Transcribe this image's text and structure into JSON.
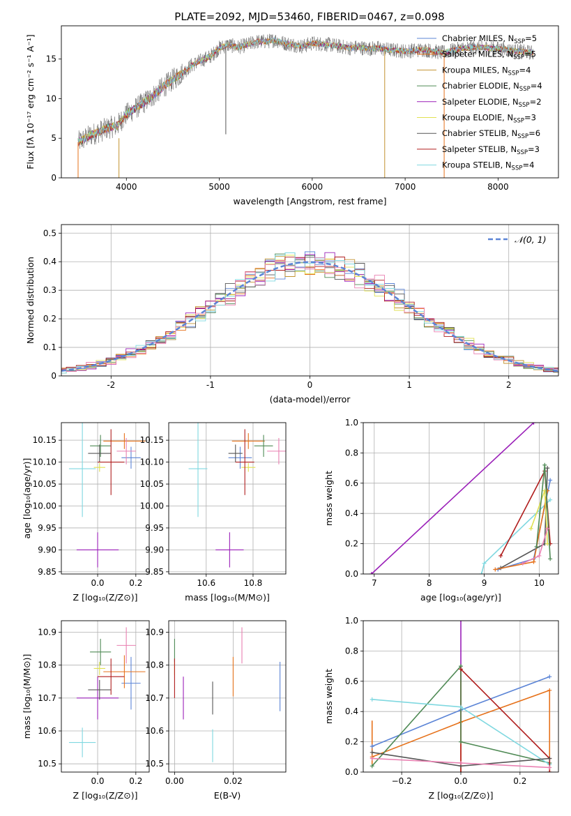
{
  "figure": {
    "title": "PLATE=2092, MJD=53460, FIBERID=0467, z=0.098"
  },
  "colors": {
    "Chabrier MILES": "#5b84d6",
    "Salpeter MILES": "#e6711a",
    "Kroupa MILES": "#c29230",
    "Chabrier ELODIE": "#4f8a55",
    "Salpeter ELODIE": "#9a1fb8",
    "Kroupa ELODIE": "#e0e050",
    "Chabrier STELIB": "#555555",
    "Salpeter STELIB": "#b01d1d",
    "Kroupa STELIB": "#7fd8e0",
    "extra": "#e97fb1",
    "gaussian": "#5b84d6"
  },
  "chart_data": [
    {
      "id": "spectrum",
      "type": "line",
      "title": "PLATE=2092, MJD=53460, FIBERID=0467, z=0.098",
      "xlabel": "wavelength [Angstrom, rest frame]",
      "ylabel": "Flux [fλ 10⁻¹⁷ erg cm⁻² s⁻¹ A⁻¹]",
      "xlim": [
        3300,
        8650
      ],
      "ylim": [
        0,
        19.2
      ],
      "xticks": [
        4000,
        5000,
        6000,
        7000,
        8000
      ],
      "yticks": [
        0,
        5,
        10,
        15
      ],
      "grid": false,
      "legend_position": "top-right",
      "legend": [
        {
          "label": "Chabrier MILES, N",
          "sub": "SSP",
          "suffix": "=5",
          "color_key": "Chabrier MILES"
        },
        {
          "label": "Salpeter MILES, N",
          "sub": "SSP",
          "suffix": "=5",
          "color_key": "Salpeter MILES"
        },
        {
          "label": "Kroupa MILES, N",
          "sub": "SSP",
          "suffix": "=4",
          "color_key": "Kroupa MILES"
        },
        {
          "label": "Chabrier ELODIE, N",
          "sub": "SSP",
          "suffix": "=4",
          "color_key": "Chabrier ELODIE"
        },
        {
          "label": "Salpeter ELODIE, N",
          "sub": "SSP",
          "suffix": "=2",
          "color_key": "Salpeter ELODIE"
        },
        {
          "label": "Kroupa ELODIE, N",
          "sub": "SSP",
          "suffix": "=3",
          "color_key": "Kroupa ELODIE"
        },
        {
          "label": "Chabrier STELIB, N",
          "sub": "SSP",
          "suffix": "=6",
          "color_key": "Chabrier STELIB"
        },
        {
          "label": "Salpeter STELIB, N",
          "sub": "SSP",
          "suffix": "=3",
          "color_key": "Salpeter STELIB"
        },
        {
          "label": "Kroupa STELIB, N",
          "sub": "SSP",
          "suffix": "=4",
          "color_key": "Kroupa STELIB"
        }
      ],
      "continuum_x": [
        3480,
        3600,
        3700,
        3800,
        3900,
        4000,
        4100,
        4200,
        4300,
        4400,
        4500,
        4600,
        4700,
        4800,
        4900,
        5000,
        5100,
        5200,
        5300,
        5400,
        5500,
        5600,
        5700,
        5800,
        5900,
        6000,
        6100,
        6200,
        6300,
        6400,
        6500,
        6600,
        6700,
        6800,
        6900,
        7000,
        7200,
        7400,
        7600,
        7800,
        8000,
        8200,
        8380
      ],
      "continuum_y": [
        4.5,
        5.3,
        5.8,
        6.3,
        6.6,
        8.0,
        8.8,
        9.6,
        10.5,
        11.5,
        12.4,
        13.2,
        14.2,
        14.8,
        15.3,
        16.4,
        16.8,
        16.5,
        16.8,
        17.2,
        17.2,
        17.4,
        17.0,
        16.8,
        16.6,
        17.0,
        16.9,
        16.8,
        16.6,
        16.4,
        16.5,
        16.3,
        16.4,
        16.2,
        16.1,
        16.0,
        16.2,
        15.8,
        16.3,
        16.5,
        16.3,
        16.0,
        15.8
      ],
      "spikes": [
        {
          "x": 3480,
          "y0": 0,
          "y1": 4.5,
          "color_key": "Salpeter MILES"
        },
        {
          "x": 3920,
          "y0": 0,
          "y1": 5.0,
          "color_key": "Kroupa MILES"
        },
        {
          "x": 5070,
          "y0": 5.5,
          "y1": 16.5,
          "color_key": "Chabrier STELIB"
        },
        {
          "x": 6780,
          "y0": 0,
          "y1": 16.0,
          "color_key": "Kroupa MILES"
        },
        {
          "x": 7420,
          "y0": 0,
          "y1": 15.5,
          "color_key": "Salpeter MILES"
        }
      ]
    },
    {
      "id": "residuals",
      "type": "histogram",
      "xlabel": "(data-model)/error",
      "ylabel": "Normed distribution",
      "xlim": [
        -2.5,
        2.5
      ],
      "ylim": [
        0,
        0.53
      ],
      "xticks": [
        -2,
        -1,
        0,
        1,
        2
      ],
      "yticks": [
        0.0,
        0.1,
        0.2,
        0.3,
        0.4,
        0.5
      ],
      "grid": true,
      "legend_position": "top-right",
      "legend": [
        {
          "label": "𝒩(0, 1)",
          "color_key": "gaussian"
        }
      ],
      "bin_width": 0.1,
      "series_colors": [
        "Chabrier MILES",
        "Salpeter MILES",
        "Kroupa MILES",
        "Chabrier ELODIE",
        "Salpeter ELODIE",
        "Kroupa ELODIE",
        "Chabrier STELIB",
        "Salpeter STELIB",
        "Kroupa STELIB",
        "extra"
      ]
    },
    {
      "id": "age-vs-Z",
      "type": "errorbar",
      "xlabel": "Z [log₁₀(Z/Z⊙)]",
      "ylabel": "age  [log₁₀(age/yr)]",
      "xlim": [
        -0.19,
        0.27
      ],
      "ylim": [
        9.845,
        10.19
      ],
      "xticks": [
        0.0,
        0.2
      ],
      "xtick_labels": [
        "0.0",
        "0.2"
      ],
      "yticks": [
        9.85,
        9.9,
        9.95,
        10.0,
        10.05,
        10.1,
        10.15
      ],
      "ytick_labels": [
        "9.85",
        "9.90",
        "9.95",
        "10.00",
        "10.05",
        "10.10",
        "10.15"
      ],
      "grid": true,
      "points": [
        {
          "x": 0.175,
          "y": 10.11,
          "xerr": 0.05,
          "yerr": 0.025,
          "color_key": "Chabrier MILES"
        },
        {
          "x": 0.14,
          "y": 10.148,
          "xerr": 0.11,
          "yerr": 0.018,
          "color_key": "Salpeter MILES"
        },
        {
          "x": 0.015,
          "y": 10.137,
          "xerr": 0.055,
          "yerr": 0.025,
          "color_key": "Chabrier ELODIE"
        },
        {
          "x": -0.0,
          "y": 9.9,
          "xerr": 0.11,
          "yerr": 0.04,
          "color_key": "Salpeter ELODIE"
        },
        {
          "x": 0.01,
          "y": 10.088,
          "xerr": 0.03,
          "yerr": 0.01,
          "color_key": "Kroupa ELODIE"
        },
        {
          "x": 0.01,
          "y": 10.12,
          "xerr": 0.06,
          "yerr": 0.02,
          "color_key": "Chabrier STELIB"
        },
        {
          "x": 0.07,
          "y": 10.1,
          "xerr": 0.07,
          "yerr": 0.075,
          "color_key": "Salpeter STELIB"
        },
        {
          "x": -0.08,
          "y": 10.085,
          "xerr": 0.07,
          "yerr": 0.11,
          "color_key": "Kroupa STELIB"
        },
        {
          "x": 0.15,
          "y": 10.125,
          "xerr": 0.05,
          "yerr": 0.03,
          "color_key": "extra"
        }
      ]
    },
    {
      "id": "age-vs-mass",
      "type": "errorbar",
      "xlabel": "mass [log₁₀(M/M⊙)]",
      "ylabel": "",
      "xlim": [
        10.44,
        10.94
      ],
      "ylim": [
        9.845,
        10.19
      ],
      "xticks": [
        10.6,
        10.8
      ],
      "xtick_labels": [
        "10.6",
        "10.8"
      ],
      "yticks": [
        9.85,
        9.9,
        9.95,
        10.0,
        10.05,
        10.1,
        10.15
      ],
      "ytick_labels": [
        "9.85",
        "9.90",
        "9.95",
        "10.00",
        "10.05",
        "10.10",
        "10.15"
      ],
      "grid": true,
      "points": [
        {
          "x": 10.745,
          "y": 10.11,
          "xerr": 0.05,
          "yerr": 0.025,
          "color_key": "Chabrier MILES"
        },
        {
          "x": 10.78,
          "y": 10.148,
          "xerr": 0.07,
          "yerr": 0.018,
          "color_key": "Salpeter MILES"
        },
        {
          "x": 10.845,
          "y": 10.137,
          "xerr": 0.04,
          "yerr": 0.025,
          "color_key": "Chabrier ELODIE"
        },
        {
          "x": 10.7,
          "y": 9.9,
          "xerr": 0.06,
          "yerr": 0.04,
          "color_key": "Salpeter ELODIE"
        },
        {
          "x": 10.78,
          "y": 10.088,
          "xerr": 0.03,
          "yerr": 0.01,
          "color_key": "Kroupa ELODIE"
        },
        {
          "x": 10.725,
          "y": 10.12,
          "xerr": 0.03,
          "yerr": 0.02,
          "color_key": "Chabrier STELIB"
        },
        {
          "x": 10.765,
          "y": 10.1,
          "xerr": 0.04,
          "yerr": 0.075,
          "color_key": "Salpeter STELIB"
        },
        {
          "x": 10.565,
          "y": 10.085,
          "xerr": 0.04,
          "yerr": 0.11,
          "color_key": "Kroupa STELIB"
        },
        {
          "x": 10.91,
          "y": 10.125,
          "xerr": 0.05,
          "yerr": 0.03,
          "color_key": "extra"
        }
      ]
    },
    {
      "id": "weight-vs-age",
      "type": "line",
      "xlabel": "age  [log₁₀(age/yr)]",
      "ylabel": "mass weight",
      "xlim": [
        6.8,
        10.35
      ],
      "ylim": [
        0,
        1.0
      ],
      "xticks": [
        7,
        8,
        9,
        10
      ],
      "xtick_labels": [
        "7",
        "8",
        "9",
        "10"
      ],
      "yticks": [
        0.0,
        0.2,
        0.4,
        0.6,
        0.8,
        1.0
      ],
      "ytick_labels": [
        "0.0",
        "0.2",
        "0.4",
        "0.6",
        "0.8",
        "1.0"
      ],
      "grid": true,
      "series": [
        {
          "color_key": "Salpeter ELODIE",
          "x": [
            6.95,
            9.9
          ],
          "y": [
            0.0,
            1.0
          ]
        },
        {
          "color_key": "Kroupa STELIB",
          "x": [
            8.95,
            9.0,
            10.2
          ],
          "y": [
            0.0,
            0.07,
            0.49
          ]
        },
        {
          "color_key": "Salpeter STELIB",
          "x": [
            9.3,
            10.1,
            10.2
          ],
          "y": [
            0.12,
            0.68,
            0.2
          ]
        },
        {
          "color_key": "Chabrier STELIB",
          "x": [
            9.3,
            10.1,
            10.15
          ],
          "y": [
            0.04,
            0.2,
            0.7
          ]
        },
        {
          "color_key": "Chabrier MILES",
          "x": [
            9.25,
            9.9,
            10.2
          ],
          "y": [
            0.03,
            0.1,
            0.62
          ]
        },
        {
          "color_key": "Salpeter MILES",
          "x": [
            9.2,
            9.9,
            10.15
          ],
          "y": [
            0.03,
            0.08,
            0.55
          ]
        },
        {
          "color_key": "Kroupa ELODIE",
          "x": [
            9.85,
            10.1,
            10.15
          ],
          "y": [
            0.3,
            0.55,
            0.2
          ]
        },
        {
          "color_key": "Chabrier ELODIE",
          "x": [
            9.95,
            10.1,
            10.2
          ],
          "y": [
            0.18,
            0.72,
            0.1
          ]
        },
        {
          "color_key": "extra",
          "x": [
            9.7,
            10.0,
            10.15
          ],
          "y": [
            0.07,
            0.12,
            0.3
          ]
        }
      ]
    },
    {
      "id": "mass-vs-Z",
      "type": "errorbar",
      "xlabel": "Z [log₁₀(Z/Z⊙)]",
      "ylabel": "mass [log₁₀(M/M⊙)]",
      "xlim": [
        -0.19,
        0.27
      ],
      "ylim": [
        10.475,
        10.935
      ],
      "xticks": [
        0.0,
        0.2
      ],
      "xtick_labels": [
        "0.0",
        "0.2"
      ],
      "yticks": [
        10.5,
        10.6,
        10.7,
        10.8,
        10.9
      ],
      "ytick_labels": [
        "10.5",
        "10.6",
        "10.7",
        "10.8",
        "10.9"
      ],
      "grid": true,
      "points": [
        {
          "x": 0.175,
          "y": 10.745,
          "xerr": 0.05,
          "yerr": 0.08,
          "color_key": "Chabrier MILES"
        },
        {
          "x": 0.14,
          "y": 10.78,
          "xerr": 0.11,
          "yerr": 0.05,
          "color_key": "Salpeter MILES"
        },
        {
          "x": 0.015,
          "y": 10.84,
          "xerr": 0.055,
          "yerr": 0.04,
          "color_key": "Chabrier ELODIE"
        },
        {
          "x": 0.0,
          "y": 10.7,
          "xerr": 0.11,
          "yerr": 0.065,
          "color_key": "Salpeter ELODIE"
        },
        {
          "x": 0.01,
          "y": 10.79,
          "xerr": 0.03,
          "yerr": 0.02,
          "color_key": "Kroupa ELODIE"
        },
        {
          "x": 0.01,
          "y": 10.725,
          "xerr": 0.06,
          "yerr": 0.03,
          "color_key": "Chabrier STELIB"
        },
        {
          "x": 0.07,
          "y": 10.765,
          "xerr": 0.07,
          "yerr": 0.055,
          "color_key": "Salpeter STELIB"
        },
        {
          "x": -0.08,
          "y": 10.565,
          "xerr": 0.07,
          "yerr": 0.045,
          "color_key": "Kroupa STELIB"
        },
        {
          "x": 0.15,
          "y": 10.86,
          "xerr": 0.05,
          "yerr": 0.055,
          "color_key": "extra"
        }
      ]
    },
    {
      "id": "mass-vs-EBV",
      "type": "errorbar",
      "xlabel": "E(B-V)",
      "ylabel": "",
      "xlim": [
        -0.002,
        0.038
      ],
      "ylim": [
        10.475,
        10.935
      ],
      "xticks": [
        0.0,
        0.02
      ],
      "xtick_labels": [
        "0.00",
        "0.02"
      ],
      "yticks": [
        10.5,
        10.6,
        10.7,
        10.8,
        10.9
      ],
      "ytick_labels": [
        "10.5",
        "10.6",
        "10.7",
        "10.8",
        "10.9"
      ],
      "grid": true,
      "points": [
        {
          "x": 0.036,
          "y": 10.735,
          "xerr": 0,
          "yerr": 0.075,
          "color_key": "Chabrier MILES"
        },
        {
          "x": 0.02,
          "y": 10.765,
          "xerr": 0,
          "yerr": 0.06,
          "color_key": "Salpeter MILES"
        },
        {
          "x": 0.0,
          "y": 10.845,
          "xerr": 0,
          "yerr": 0.035,
          "color_key": "Chabrier ELODIE"
        },
        {
          "x": 0.003,
          "y": 10.7,
          "xerr": 0,
          "yerr": 0.065,
          "color_key": "Salpeter ELODIE"
        },
        {
          "x": 0.0,
          "y": 10.79,
          "xerr": 0,
          "yerr": 0.02,
          "color_key": "Kroupa ELODIE"
        },
        {
          "x": 0.013,
          "y": 10.7,
          "xerr": 0,
          "yerr": 0.05,
          "color_key": "Chabrier STELIB"
        },
        {
          "x": 0.0,
          "y": 10.76,
          "xerr": 0,
          "yerr": 0.06,
          "color_key": "Salpeter STELIB"
        },
        {
          "x": 0.013,
          "y": 10.555,
          "xerr": 0,
          "yerr": 0.05,
          "color_key": "Kroupa STELIB"
        },
        {
          "x": 0.023,
          "y": 10.86,
          "xerr": 0,
          "yerr": 0.055,
          "color_key": "extra"
        }
      ]
    },
    {
      "id": "weight-vs-Z",
      "type": "line",
      "xlabel": "Z [log₁₀(Z/Z⊙)]",
      "ylabel": "mass weight",
      "xlim": [
        -0.33,
        0.33
      ],
      "ylim": [
        0,
        1.0
      ],
      "xticks": [
        -0.2,
        0.0,
        0.2
      ],
      "xtick_labels": [
        "−0.2",
        "0.0",
        "0.2"
      ],
      "yticks": [
        0.0,
        0.2,
        0.4,
        0.6,
        0.8,
        1.0
      ],
      "ytick_labels": [
        "0.0",
        "0.2",
        "0.4",
        "0.6",
        "0.8",
        "1.0"
      ],
      "grid": true,
      "series": [
        {
          "color_key": "Chabrier MILES",
          "x": [
            -0.3,
            0.0,
            0.3
          ],
          "y": [
            0.17,
            0.41,
            0.63
          ]
        },
        {
          "color_key": "Salpeter MILES",
          "x": [
            -0.3,
            0.0,
            0.3
          ],
          "y": [
            0.1,
            0.33,
            0.54
          ]
        },
        {
          "color_key": "Chabrier ELODIE",
          "x": [
            -0.3,
            0.0,
            0.0,
            0.3
          ],
          "y": [
            0.04,
            0.7,
            0.2,
            0.06
          ]
        },
        {
          "color_key": "Kroupa STELIB",
          "x": [
            -0.3,
            0.0,
            0.3
          ],
          "y": [
            0.48,
            0.43,
            0.05
          ]
        },
        {
          "color_key": "Salpeter STELIB",
          "x": [
            0.0,
            0.3,
            0.3
          ],
          "y": [
            0.68,
            0.09,
            0.0
          ]
        },
        {
          "color_key": "Chabrier STELIB",
          "x": [
            -0.3,
            0.0,
            0.3
          ],
          "y": [
            0.13,
            0.04,
            0.09
          ]
        },
        {
          "color_key": "extra",
          "x": [
            -0.3,
            0.0,
            0.3
          ],
          "y": [
            0.09,
            0.06,
            0.03
          ]
        }
      ],
      "vertical_errors": [
        {
          "x": 0.0,
          "y0": 0.35,
          "y1": 1.0,
          "color_key": "Salpeter ELODIE"
        },
        {
          "x": -0.3,
          "y0": 0.05,
          "y1": 0.34,
          "color_key": "Salpeter MILES"
        },
        {
          "x": 0.0,
          "y0": 0.0,
          "y1": 0.6,
          "color_key": "Salpeter MILES"
        },
        {
          "x": 0.3,
          "y0": 0.0,
          "y1": 0.54,
          "color_key": "Salpeter MILES"
        },
        {
          "x": 0.0,
          "y0": 0.0,
          "y1": 0.68,
          "color_key": "Salpeter STELIB"
        }
      ]
    }
  ]
}
